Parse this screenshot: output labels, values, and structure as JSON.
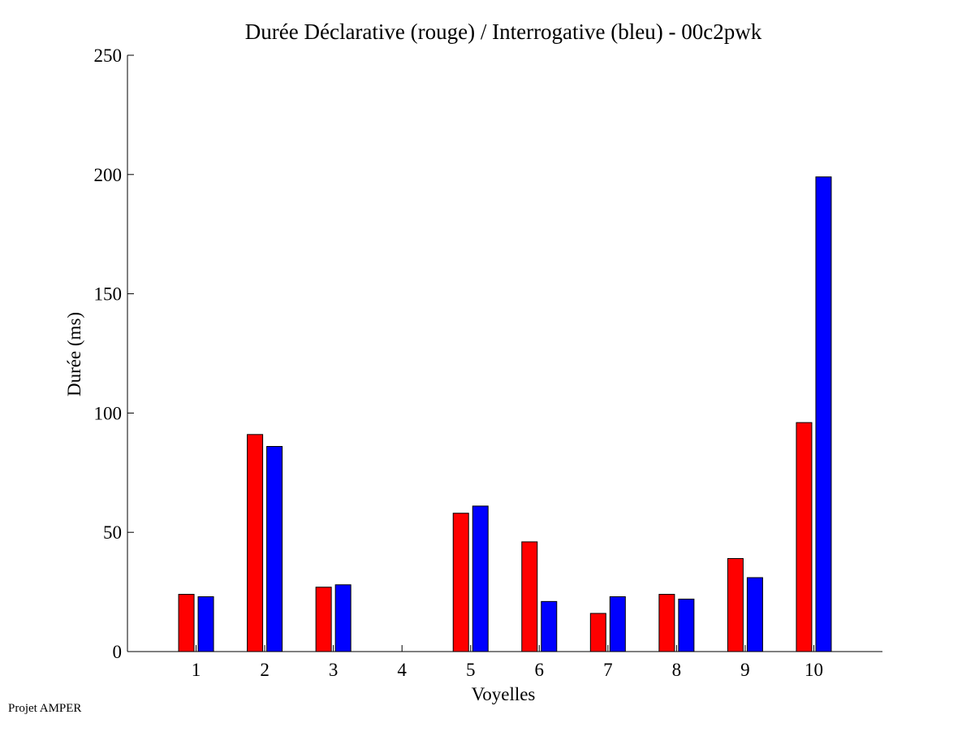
{
  "footer": {
    "text": "Projet AMPER"
  },
  "chart_data": {
    "type": "bar",
    "title": "Durée Déclarative (rouge) / Interrogative (bleu) - 00c2pwk",
    "xlabel": "Voyelles",
    "ylabel": "Durée (ms)",
    "ylim": [
      0,
      250
    ],
    "yticks": [
      0,
      50,
      100,
      150,
      200,
      250
    ],
    "categories": [
      "1",
      "2",
      "3",
      "4",
      "5",
      "6",
      "7",
      "8",
      "9",
      "10"
    ],
    "grid": false,
    "series": [
      {
        "color": "#ff0000",
        "values": [
          24,
          91,
          27,
          0,
          58,
          46,
          16,
          24,
          39,
          96
        ]
      },
      {
        "color": "#0000ff",
        "values": [
          23,
          86,
          28,
          0,
          61,
          21,
          23,
          22,
          31,
          199
        ]
      }
    ]
  }
}
